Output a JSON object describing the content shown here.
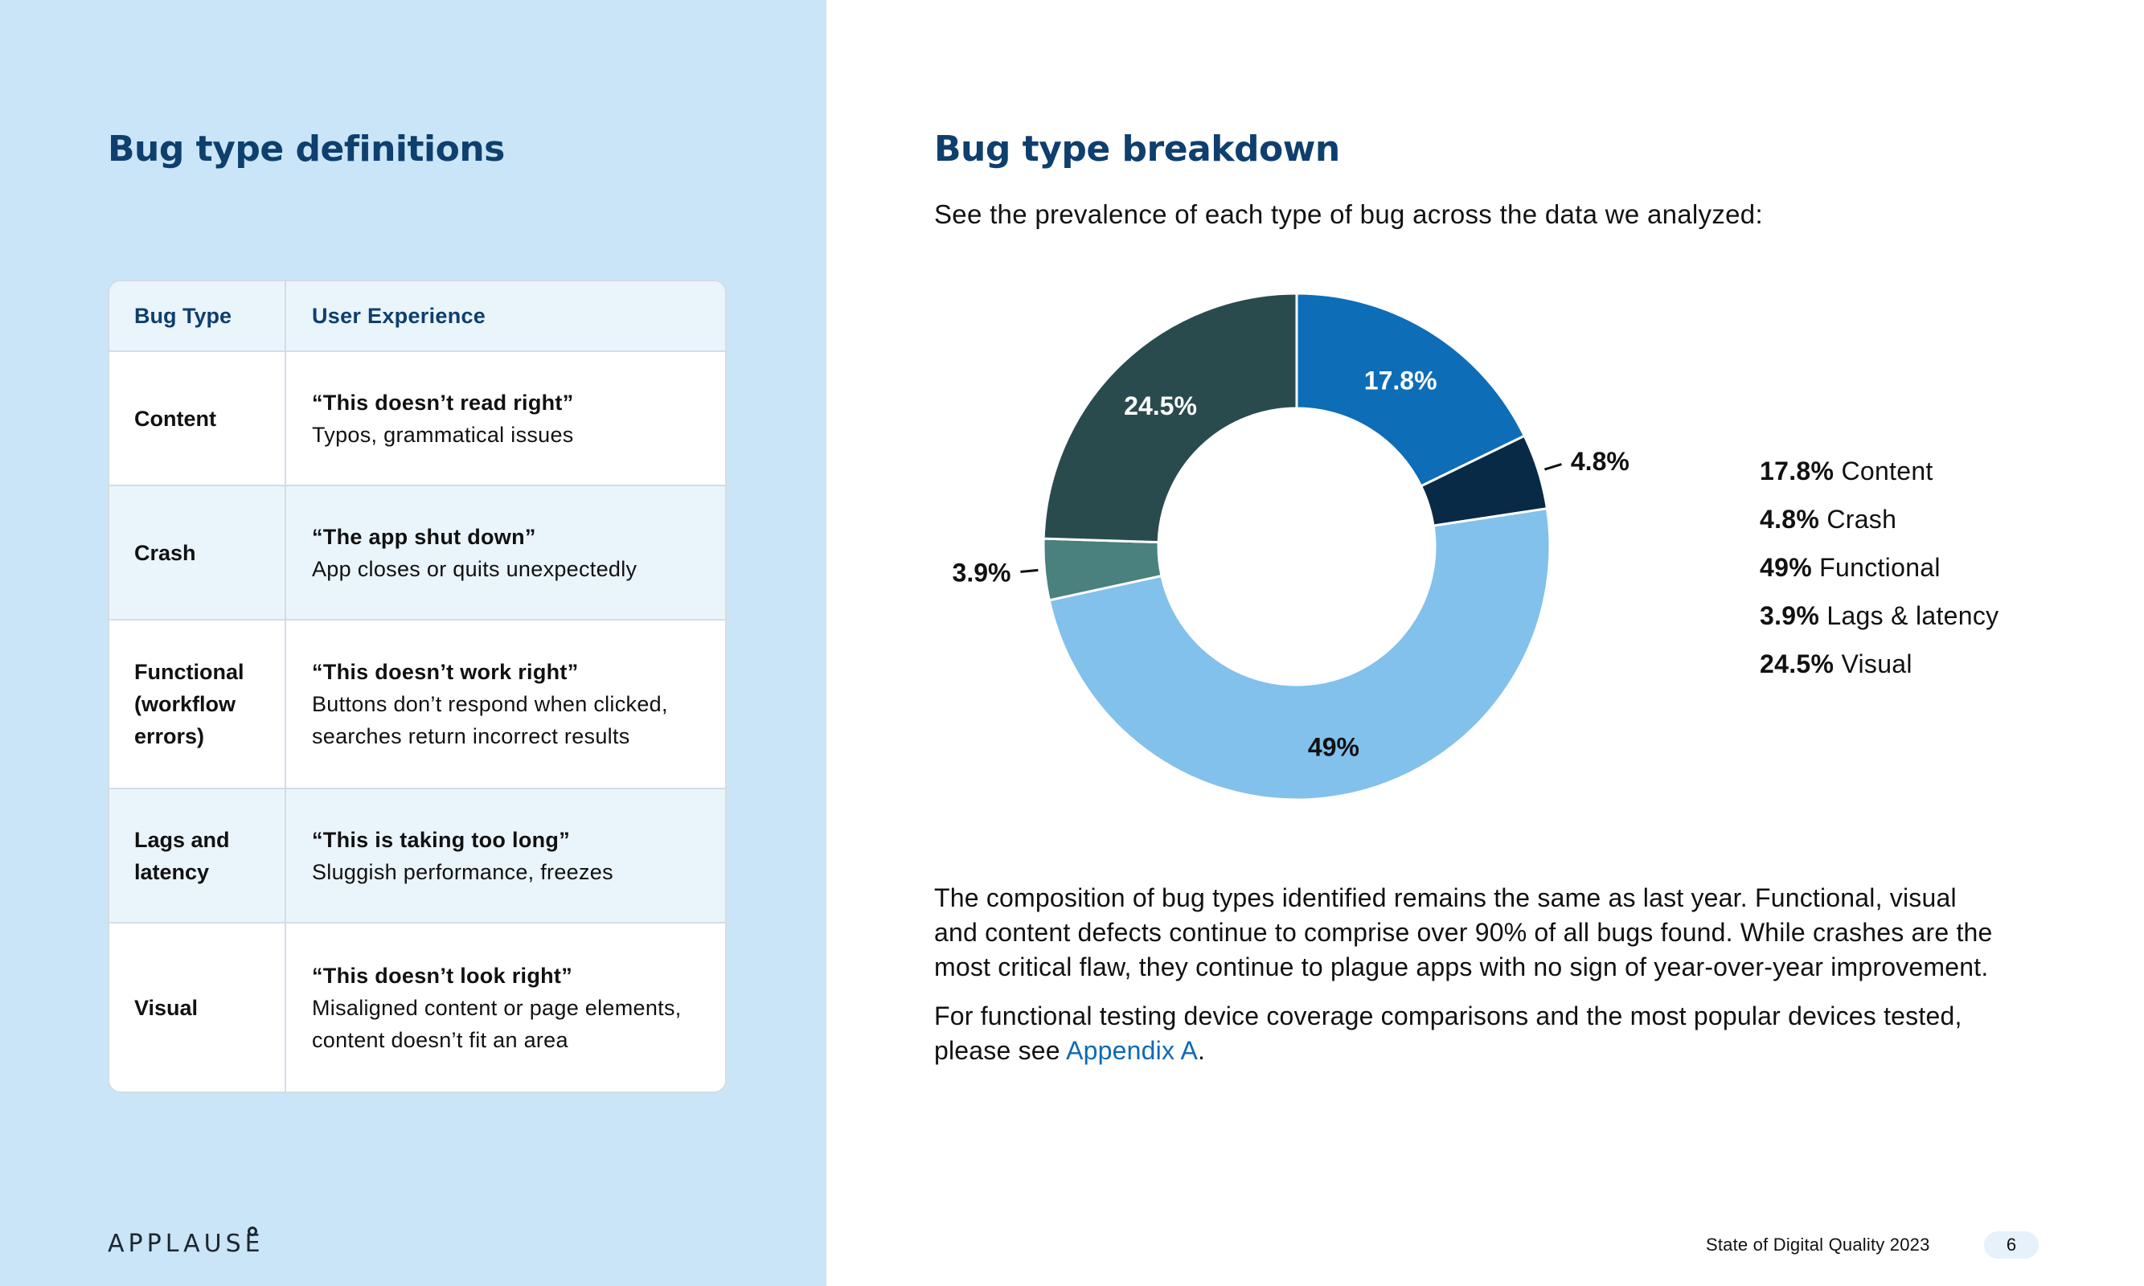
{
  "left": {
    "title": "Bug type definitions",
    "table": {
      "headers": [
        "Bug Type",
        "User Experience"
      ],
      "rows": [
        {
          "type": "Content",
          "quote": "“This doesn’t read right”",
          "desc": "Typos, grammatical issues"
        },
        {
          "type": "Crash",
          "quote": "“The app shut down”",
          "desc": "App closes or quits unexpectedly"
        },
        {
          "type": "Functional (workflow errors)",
          "quote": "“This doesn’t work right”",
          "desc": "Buttons don’t respond when clicked, searches return incorrect results"
        },
        {
          "type": "Lags and latency",
          "quote": "“This is taking too long”",
          "desc": "Sluggish performance, freezes"
        },
        {
          "type": "Visual",
          "quote": "“This doesn’t look right”",
          "desc": "Misaligned content or page elements, content doesn’t fit an area"
        }
      ]
    },
    "logo": "APPLAUSE"
  },
  "right": {
    "title": "Bug type breakdown",
    "intro": "See the prevalence of each type of bug across the data we analyzed:",
    "legend": [
      {
        "pct": "17.8%",
        "label": "Content"
      },
      {
        "pct": "4.8%",
        "label": "Crash"
      },
      {
        "pct": "49%",
        "label": "Functional"
      },
      {
        "pct": "3.9%",
        "label": "Lags & latency"
      },
      {
        "pct": "24.5%",
        "label": "Visual"
      }
    ],
    "paragraph1": "The composition of bug types identified remains the same as last year. Functional, visual and content defects continue to comprise over 90% of all bugs found. While crashes are the most critical flaw, they continue to plague apps with no sign of year-over-year improvement.",
    "paragraph2_prefix": "For functional testing device coverage comparisons and the most popular devices tested, please see ",
    "paragraph2_link": "Appendix A",
    "paragraph2_suffix": "."
  },
  "footer": {
    "doc_title": "State of Digital Quality 2023",
    "page_number": "6"
  },
  "chart_data": {
    "type": "pie",
    "donut": true,
    "categories": [
      "Content",
      "Crash",
      "Functional",
      "Lags & latency",
      "Visual"
    ],
    "values": [
      17.8,
      4.8,
      49,
      3.9,
      24.5
    ],
    "labels": [
      "17.8%",
      "4.8%",
      "49%",
      "3.9%",
      "24.5%"
    ],
    "colors": [
      "#0d6db7",
      "#082a47",
      "#82c1eb",
      "#4a807d",
      "#2a4b4d"
    ],
    "label_colors": [
      "#ffffff",
      "#111111",
      "#111111",
      "#111111",
      "#ffffff"
    ],
    "outside_labels": [
      false,
      true,
      false,
      true,
      false
    ],
    "legend_position": "right"
  }
}
